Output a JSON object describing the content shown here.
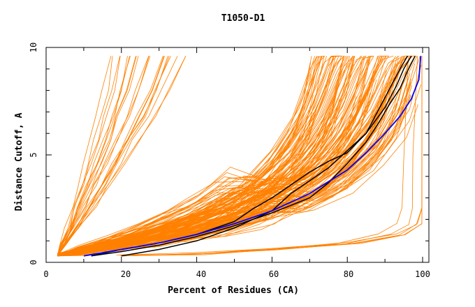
{
  "chart_data": {
    "type": "line",
    "title": "T1050-D1",
    "xlabel": "Percent of Residues (CA)",
    "ylabel": "Distance Cutoff, A",
    "xlim": [
      0,
      100
    ],
    "ylim": [
      0,
      10
    ],
    "x_ticks": [
      "0",
      "20",
      "40",
      "60",
      "80",
      "100"
    ],
    "y_ticks": [
      "0",
      "5",
      "10"
    ],
    "colors": {
      "models": "#ff8000",
      "highlighted": "#000000",
      "reference": "#0000ff"
    },
    "series": [
      {
        "group": "steep-models",
        "color": "#ff8000",
        "count": 22,
        "x": [
          3,
          4,
          6,
          8,
          10,
          12,
          14,
          16,
          18,
          20
        ],
        "y": [
          0.3,
          0.8,
          1.6,
          2.6,
          3.6,
          4.6,
          5.7,
          6.8,
          8.0,
          9.6
        ]
      },
      {
        "group": "mid-models",
        "color": "#ff8000",
        "count": 150,
        "x": [
          3,
          10,
          20,
          30,
          40,
          50,
          60,
          70,
          80,
          88,
          94,
          97
        ],
        "y": [
          0.3,
          0.5,
          0.8,
          1.1,
          1.5,
          1.9,
          2.5,
          3.2,
          4.3,
          5.8,
          7.6,
          9.6
        ]
      },
      {
        "group": "low-models",
        "color": "#ff8000",
        "count": 6,
        "x": [
          20,
          40,
          60,
          80,
          92,
          97,
          98.5,
          99.3,
          99.6
        ],
        "y": [
          0.3,
          0.4,
          0.6,
          0.9,
          1.3,
          1.8,
          2.5,
          5.0,
          9.6
        ]
      },
      {
        "name": "model-black-1",
        "color": "#000000",
        "x": [
          20,
          30,
          40,
          50,
          60,
          65,
          70,
          75,
          80,
          85,
          90,
          93,
          95,
          97
        ],
        "y": [
          0.3,
          0.6,
          1.0,
          1.6,
          2.4,
          3.2,
          3.8,
          4.4,
          5.2,
          6.0,
          7.2,
          8.2,
          9.0,
          9.6
        ]
      },
      {
        "name": "model-black-2",
        "color": "#000000",
        "x": [
          12,
          20,
          30,
          40,
          50,
          55,
          60,
          65,
          70,
          75,
          80,
          85,
          88,
          91,
          94,
          96
        ],
        "y": [
          0.3,
          0.6,
          0.9,
          1.3,
          1.9,
          2.5,
          3.0,
          3.6,
          4.2,
          4.7,
          5.1,
          6.0,
          7.0,
          8.0,
          9.0,
          9.6
        ]
      },
      {
        "name": "model-black-3",
        "color": "#000000",
        "x": [
          12,
          20,
          30,
          40,
          50,
          60,
          70,
          75,
          80,
          85,
          88,
          91,
          94,
          96,
          98
        ],
        "y": [
          0.3,
          0.5,
          0.8,
          1.2,
          1.7,
          2.3,
          3.0,
          3.7,
          4.6,
          5.6,
          6.4,
          7.3,
          8.1,
          8.9,
          9.6
        ]
      },
      {
        "name": "model-blue",
        "color": "#0000ff",
        "x": [
          10,
          20,
          30,
          40,
          50,
          60,
          70,
          80,
          85,
          90,
          94,
          97,
          99,
          99.5
        ],
        "y": [
          0.3,
          0.6,
          0.9,
          1.3,
          1.8,
          2.4,
          3.2,
          4.3,
          5.1,
          6.0,
          6.8,
          7.6,
          8.5,
          9.6
        ]
      }
    ]
  }
}
